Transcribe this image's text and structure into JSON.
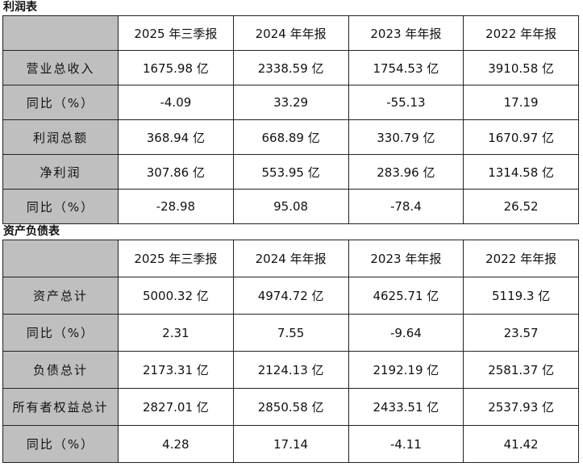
{
  "tables": [
    {
      "title": "利润表",
      "columns": [
        "2025 年三季报",
        "2024 年年报",
        "2023 年年报",
        "2022 年年报"
      ],
      "rows": [
        {
          "label": "营业总收入",
          "cells": [
            "1675.98 亿",
            "2338.59 亿",
            "1754.53 亿",
            "3910.58 亿"
          ]
        },
        {
          "label": "同比（%）",
          "cells": [
            "-4.09",
            "33.29",
            "-55.13",
            "17.19"
          ]
        },
        {
          "label": "利润总额",
          "cells": [
            "368.94 亿",
            "668.89 亿",
            "330.79 亿",
            "1670.97 亿"
          ]
        },
        {
          "label": "净利润",
          "cells": [
            "307.86 亿",
            "553.95 亿",
            "283.96 亿",
            "1314.58 亿"
          ]
        },
        {
          "label": "同比（%）",
          "cells": [
            "-28.98",
            "95.08",
            "-78.4",
            "26.52"
          ]
        }
      ]
    },
    {
      "title": "资产负债表",
      "columns": [
        "2025 年三季报",
        "2024 年年报",
        "2023 年年报",
        "2022 年年报"
      ],
      "rows": [
        {
          "label": "资产总计",
          "cells": [
            "5000.32 亿",
            "4974.72 亿",
            "4625.71 亿",
            "5119.3 亿"
          ]
        },
        {
          "label": "同比（%）",
          "cells": [
            "2.31",
            "7.55",
            "-9.64",
            "23.57"
          ]
        },
        {
          "label": "负债总计",
          "cells": [
            "2173.31 亿",
            "2124.13 亿",
            "2192.19 亿",
            "2581.37 亿"
          ]
        },
        {
          "label": "所有者权益总计",
          "cells": [
            "2827.01 亿",
            "2850.58 亿",
            "2433.51 亿",
            "2537.93 亿"
          ]
        },
        {
          "label": "同比（%）",
          "cells": [
            "4.28",
            "17.14",
            "-4.11",
            "41.42"
          ]
        }
      ]
    }
  ]
}
